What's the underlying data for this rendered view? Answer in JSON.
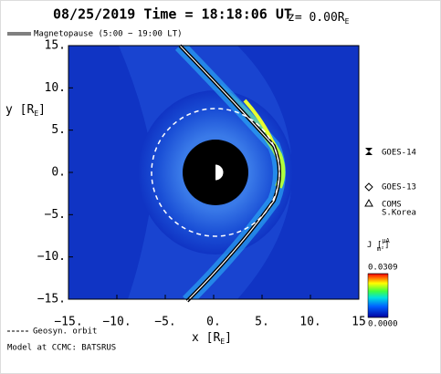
{
  "chart_data": {
    "type": "field",
    "title": "08/25/2019 Time = 18:18:06 UT",
    "z_label": [
      "z= 0.00R",
      "E"
    ],
    "magnetopause_label": "Magnetopause (5:00 − 19:00 LT)",
    "xlabel": [
      "x [R",
      "E",
      "]"
    ],
    "ylabel": [
      "y [R",
      "E",
      "]"
    ],
    "xlim": [
      -15,
      15
    ],
    "ylim": [
      -15,
      15
    ],
    "xticks": [
      {
        "value": -15,
        "label": "−15."
      },
      {
        "value": -10,
        "label": "−10."
      },
      {
        "value": -5,
        "label": "−5."
      },
      {
        "value": 0,
        "label": "0."
      },
      {
        "value": 5,
        "label": "5."
      },
      {
        "value": 10,
        "label": "10."
      },
      15
    ],
    "yticks": [
      {
        "value": 15,
        "label": "15."
      },
      {
        "value": 10,
        "label": "10."
      },
      {
        "value": 5,
        "label": "5."
      },
      {
        "value": 0,
        "label": "0."
      },
      {
        "value": -5,
        "label": "−5."
      },
      {
        "value": -10,
        "label": "−10."
      },
      {
        "value": -15,
        "label": "−15."
      }
    ],
    "satellites": [
      "GOES-14",
      "GOES-13",
      "COMS",
      "S.Korea"
    ],
    "orbit_label": "Geosyn. orbit",
    "colorbar_label": [
      "J [",
      "μA",
      "m²",
      "]"
    ],
    "clim": [
      {
        "value": 0,
        "label": "0.0000"
      },
      0.0309
    ],
    "footer": "Model at CCMC: BATSRUS"
  }
}
